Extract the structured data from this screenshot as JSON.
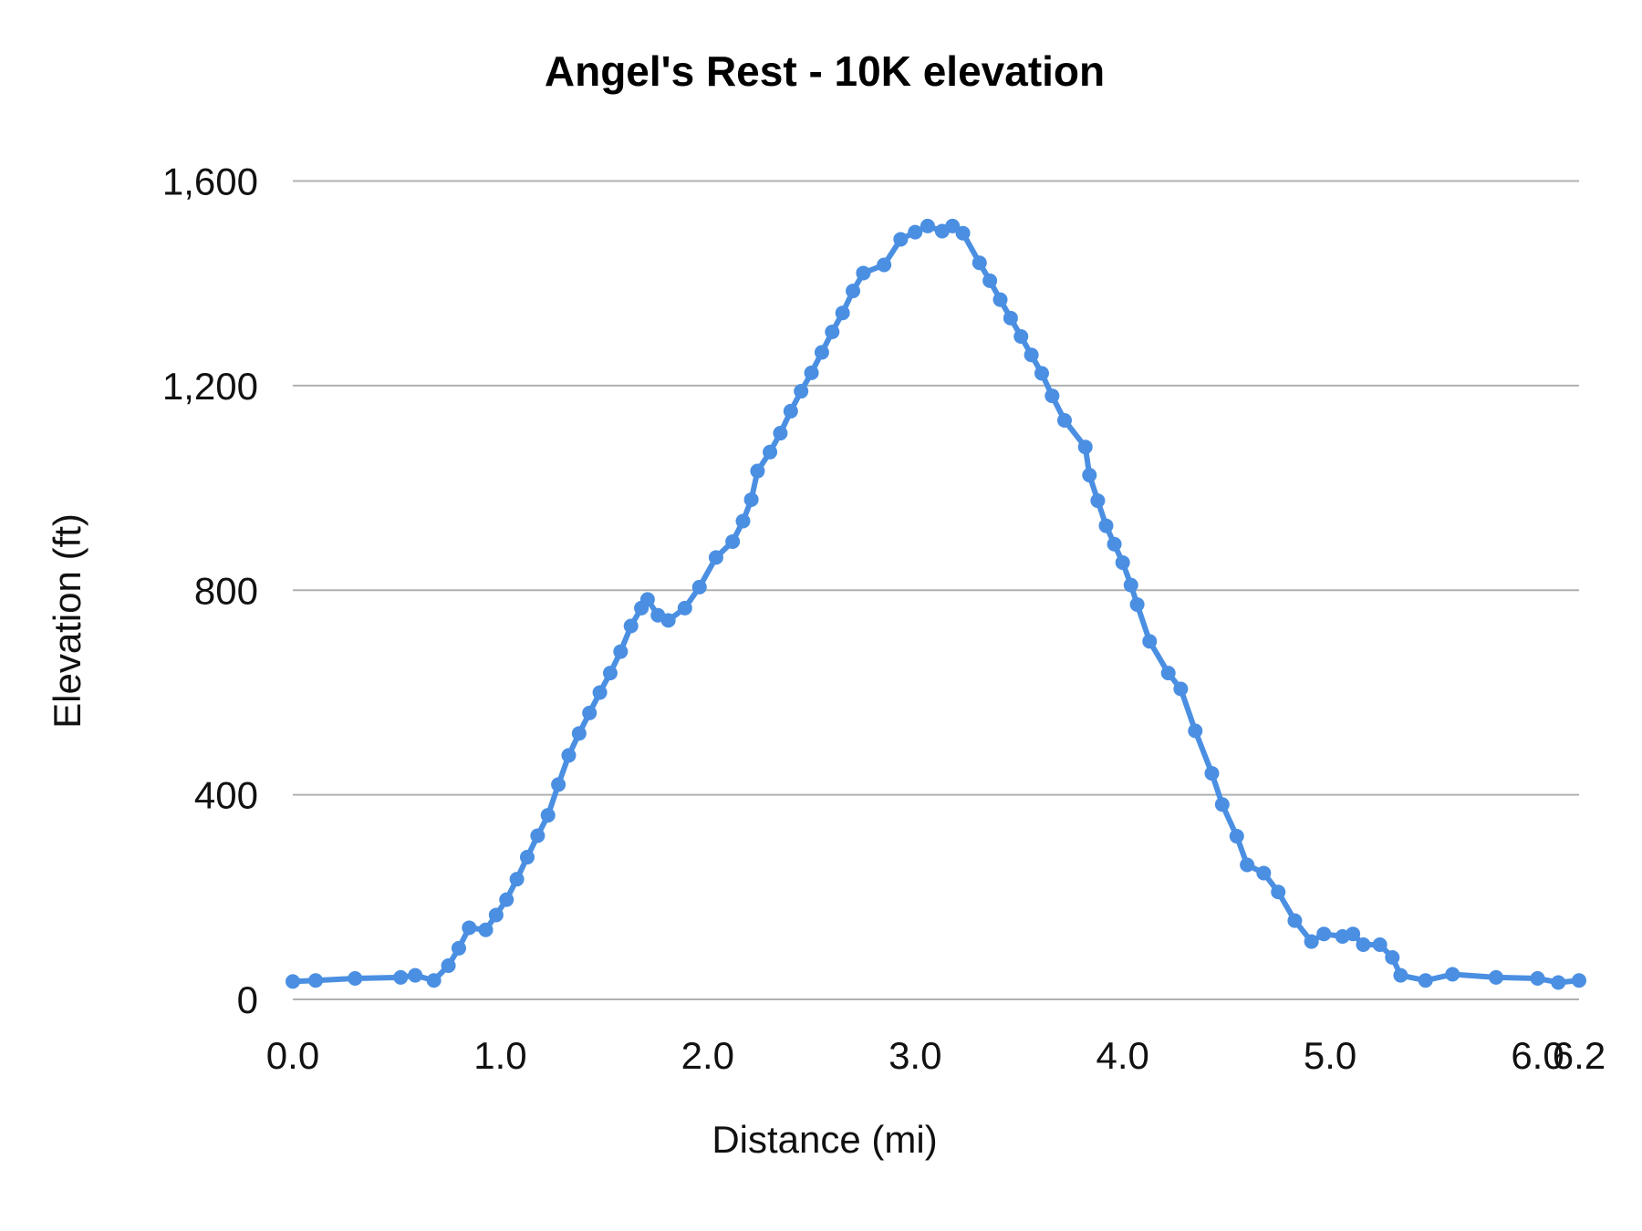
{
  "chart_data": {
    "type": "line",
    "title": "Angel's Rest - 10K elevation",
    "xlabel": "Distance (mi)",
    "ylabel": "Elevation (ft)",
    "xlim": [
      0,
      6.2
    ],
    "ylim": [
      0,
      1600
    ],
    "x_ticks": [
      "0.0",
      "1.0",
      "2.0",
      "3.0",
      "4.0",
      "5.0",
      "6.0",
      "6.2"
    ],
    "x_tick_values": [
      0,
      1,
      2,
      3,
      4,
      5,
      6,
      6.2
    ],
    "y_ticks": [
      "0",
      "400",
      "800",
      "1,200",
      "1,600"
    ],
    "y_tick_values": [
      0,
      400,
      800,
      1200,
      1600
    ],
    "grid": "horizontal",
    "markers": true,
    "color": "#4a8fe2",
    "series": [
      {
        "x": [
          0,
          0.11,
          0.3,
          0.52,
          0.59,
          0.68,
          0.75,
          0.8,
          0.85,
          0.93,
          0.98,
          1.03,
          1.08,
          1.13,
          1.18,
          1.23,
          1.28,
          1.33,
          1.38,
          1.43,
          1.48,
          1.53,
          1.58,
          1.63,
          1.68,
          1.71,
          1.76,
          1.81,
          1.89,
          1.96,
          2.04,
          2.12,
          2.17,
          2.21,
          2.24,
          2.3,
          2.35,
          2.4,
          2.45,
          2.5,
          2.55,
          2.6,
          2.65,
          2.7,
          2.75,
          2.85,
          2.93,
          3.0,
          3.06,
          3.13,
          3.18,
          3.23,
          3.31,
          3.36,
          3.41,
          3.46,
          3.51,
          3.56,
          3.61,
          3.66,
          3.72,
          3.82,
          3.84,
          3.88,
          3.92,
          3.96,
          4.0,
          4.04,
          4.07,
          4.13,
          4.22,
          4.28,
          4.35,
          4.43,
          4.48,
          4.55,
          4.6,
          4.68,
          4.75,
          4.83,
          4.91,
          4.97,
          5.06,
          5.11,
          5.16,
          5.24,
          5.3,
          5.34,
          5.46,
          5.59,
          5.8,
          6.0,
          6.1,
          6.2
        ],
        "y": [
          35,
          37,
          41,
          43,
          47,
          37,
          66,
          100,
          140,
          136,
          165,
          195,
          235,
          278,
          320,
          360,
          420,
          477,
          520,
          560,
          600,
          638,
          680,
          730,
          765,
          782,
          751,
          741,
          765,
          806,
          864,
          895,
          935,
          977,
          1033,
          1070,
          1107,
          1150,
          1189,
          1225,
          1265,
          1305,
          1342,
          1385,
          1420,
          1436,
          1486,
          1500,
          1512,
          1502,
          1512,
          1498,
          1440,
          1405,
          1368,
          1332,
          1296,
          1260,
          1224,
          1180,
          1132,
          1080,
          1025,
          975,
          926,
          890,
          854,
          810,
          772,
          700,
          638,
          607,
          525,
          442,
          381,
          319,
          263,
          247,
          210,
          154,
          113,
          128,
          123,
          128,
          107,
          107,
          82,
          47,
          37,
          49,
          43,
          41,
          33,
          37
        ]
      }
    ]
  }
}
